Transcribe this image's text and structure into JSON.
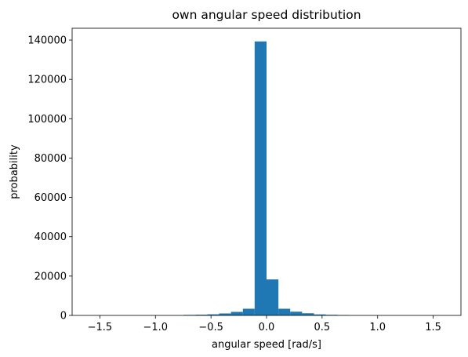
{
  "chart_data": {
    "type": "bar",
    "title": "own angular speed distribution",
    "xlabel": "angular speed [rad/s]",
    "ylabel": "probability",
    "xlim": [
      -1.75,
      1.75
    ],
    "ylim": [
      0,
      146000
    ],
    "grid": false,
    "bar_color": "#1f77b4",
    "bin_width": 0.1067,
    "bins": [
      {
        "x0": -0.747,
        "x1": -0.64,
        "value": 250
      },
      {
        "x0": -0.64,
        "x1": -0.533,
        "value": 350
      },
      {
        "x0": -0.533,
        "x1": -0.427,
        "value": 550
      },
      {
        "x0": -0.427,
        "x1": -0.32,
        "value": 1000
      },
      {
        "x0": -0.32,
        "x1": -0.213,
        "value": 1800
      },
      {
        "x0": -0.213,
        "x1": -0.107,
        "value": 3400
      },
      {
        "x0": -0.107,
        "x1": 0.0,
        "value": 139300
      },
      {
        "x0": 0.0,
        "x1": 0.107,
        "value": 18300
      },
      {
        "x0": 0.107,
        "x1": 0.213,
        "value": 3400
      },
      {
        "x0": 0.213,
        "x1": 0.32,
        "value": 1900
      },
      {
        "x0": 0.32,
        "x1": 0.427,
        "value": 1100
      },
      {
        "x0": 0.427,
        "x1": 0.533,
        "value": 500
      },
      {
        "x0": 0.533,
        "x1": 0.64,
        "value": 300
      },
      {
        "x0": 0.64,
        "x1": 0.747,
        "value": 200
      }
    ],
    "x_ticks": [
      -1.5,
      -1.0,
      -0.5,
      0.0,
      0.5,
      1.0,
      1.5
    ],
    "x_tick_labels": [
      "−1.5",
      "−1.0",
      "−0.5",
      "0.0",
      "0.5",
      "1.0",
      "1.5"
    ],
    "y_ticks": [
      0,
      20000,
      40000,
      60000,
      80000,
      100000,
      120000,
      140000
    ],
    "y_tick_labels": [
      "0",
      "20000",
      "40000",
      "60000",
      "80000",
      "100000",
      "120000",
      "140000"
    ]
  }
}
